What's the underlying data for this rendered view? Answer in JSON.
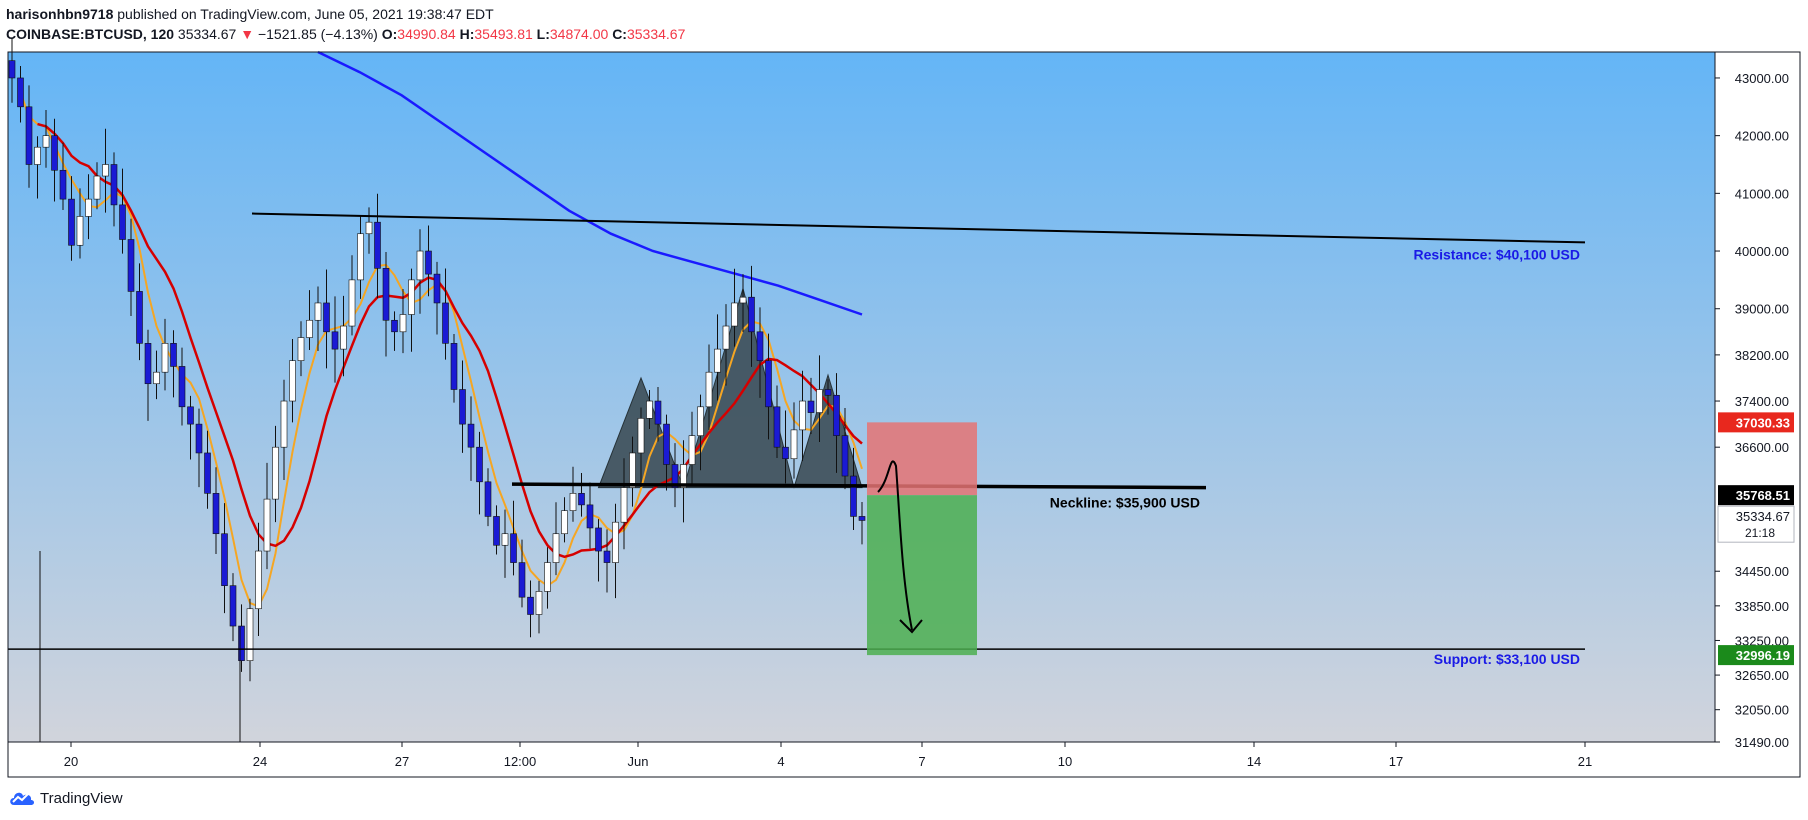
{
  "header": {
    "author": "harisonhbn9718",
    "published": " published on TradingView.com, June 05, 2021 19:38:47 EDT",
    "symbol": "COINBASE:BTCUSD, 120",
    "last": "35334.67",
    "arrow": "▼",
    "change": "−1521.85 (−4.13%)",
    "o_label": "O:",
    "o_value": "34990.84",
    "h_label": "H:",
    "h_value": "35493.81",
    "l_label": "L:",
    "l_value": "34874.00",
    "c_label": "C:",
    "c_value": "35334.67"
  },
  "footer": {
    "brand": "TradingView"
  },
  "colors": {
    "bg_top": "#64b5f6",
    "bg_bottom": "#d1d4dc",
    "ma_blue": "#1a1aff",
    "ma_red": "#d50000",
    "ma_orange": "#f5a623",
    "candle_up": "#ffffff",
    "candle_down": "#1a1ad4",
    "label_blue": "#1a1ae6",
    "price_red": "#e8281e",
    "price_green": "#1b8a1b",
    "sell_zone": "#e57373",
    "target_zone": "#4caf50",
    "pattern": "#37474f"
  },
  "chart_data": {
    "type": "candlestick",
    "y_axis": {
      "ylim": [
        31490,
        43450
      ],
      "ticks": [
        "43000.00",
        "42000.00",
        "41000.00",
        "40000.00",
        "39000.00",
        "38200.00",
        "37400.00",
        "36600.00",
        "34450.00",
        "33850.00",
        "33250.00",
        "32650.00",
        "32050.00",
        "31490.00"
      ]
    },
    "x_axis": {
      "ticks": [
        "20",
        "24",
        "27",
        "12:00",
        "Jun",
        "4",
        "7",
        "10",
        "14",
        "17",
        "21"
      ]
    },
    "price_labels": [
      {
        "value": "37030.33",
        "color": "red"
      },
      {
        "value": "35768.51",
        "color": "black"
      },
      {
        "value": "35334.67",
        "sub": "21:18",
        "color": "white"
      },
      {
        "value": "32996.19",
        "color": "green"
      }
    ],
    "annotations": {
      "resistance": "Resistance: $40,100 USD",
      "neckline": "Neckline: $35,900 USD",
      "support": "Support: $33,100 USD"
    },
    "levels": {
      "resistance": 40100,
      "neckline": 35900,
      "support": 33100,
      "stop": 37030.33,
      "entry": 35768.51,
      "target": 32996.19
    },
    "series": [
      {
        "values": "close prices (approx.)",
        "closes": [
          43000,
          42500,
          41500,
          41800,
          42000,
          41400,
          40900,
          40100,
          40600,
          40900,
          41300,
          41500,
          40800,
          40200,
          39300,
          38400,
          37700,
          37900,
          38400,
          38000,
          37300,
          37000,
          36500,
          35800,
          35100,
          34200,
          33500,
          32900,
          33800,
          34800,
          35700,
          36600,
          37400,
          38100,
          38500,
          38800,
          39100,
          38600,
          38300,
          38700,
          39500,
          40300,
          40500,
          39700,
          38800,
          38600,
          38900,
          39500,
          40000,
          39600,
          39100,
          38400,
          37600,
          37000,
          36600,
          36000,
          35400,
          34900,
          35100,
          34600,
          34000,
          33700,
          34100,
          34600,
          35100,
          35500,
          35800,
          35600,
          35200,
          34800,
          34600,
          35300,
          35900,
          36500,
          37100,
          37400,
          37000,
          36300,
          35900,
          36300,
          36800,
          37300,
          37900,
          38300,
          38700,
          39100,
          39200,
          38600,
          38100,
          37300,
          36600,
          36400,
          36900,
          37400,
          37200,
          37600,
          37500,
          36800,
          36100,
          35400,
          35330
        ]
      }
    ]
  }
}
